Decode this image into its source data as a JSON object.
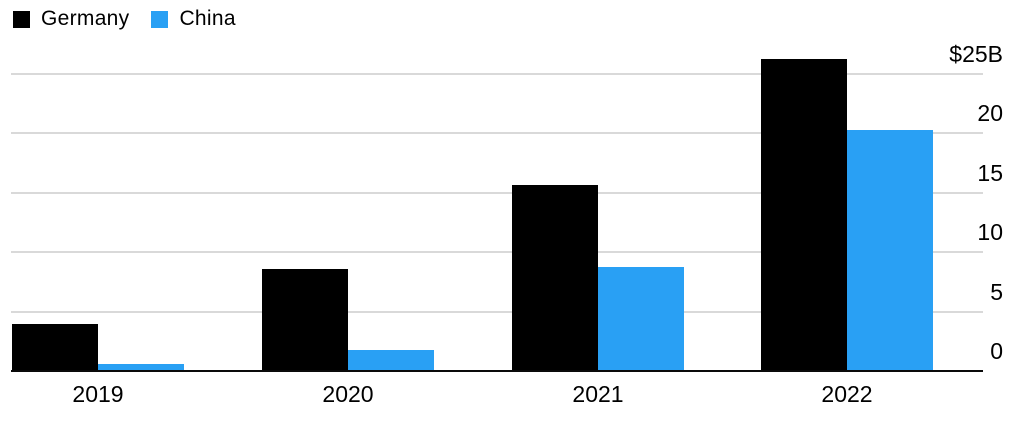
{
  "chart_data": {
    "type": "bar",
    "title": "",
    "categories": [
      "2019",
      "2020",
      "2021",
      "2022"
    ],
    "series": [
      {
        "name": "Germany",
        "color": "#000000",
        "values": [
          3.9,
          8.5,
          15.6,
          26.2
        ]
      },
      {
        "name": "China",
        "color": "#29A0F4",
        "values": [
          0.5,
          1.7,
          8.7,
          20.2
        ]
      }
    ],
    "unit": "$B",
    "y_axis": {
      "side": "right",
      "ticks": [
        25,
        20,
        15,
        10,
        5,
        0
      ],
      "tick_labels": [
        "$25B",
        "20",
        "15",
        "10",
        "5",
        "0"
      ],
      "ylim": [
        0,
        26.5
      ],
      "grid": true,
      "grid_color": "#D9D9D9",
      "axis_line_color": "#0A0A0A"
    },
    "x_axis": {
      "tick_labels": [
        "2019",
        "2020",
        "2021",
        "2022"
      ]
    },
    "legend": {
      "position": "top-left"
    }
  }
}
